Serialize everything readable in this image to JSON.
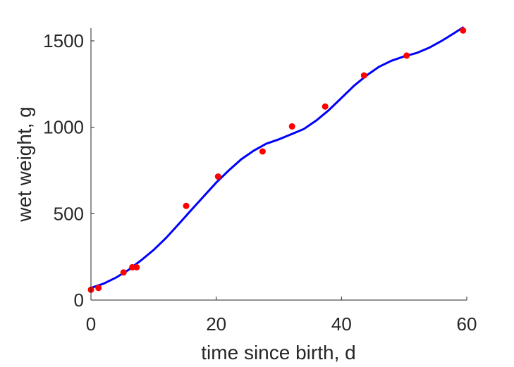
{
  "chart_data": {
    "type": "scatter",
    "xlabel": "time since birth, d",
    "ylabel": "wet weight, g",
    "xlim": [
      0,
      60
    ],
    "ylim": [
      0,
      1600
    ],
    "xticks": [
      0,
      20,
      40,
      60
    ],
    "yticks": [
      0,
      500,
      1000,
      1500
    ],
    "grid": false,
    "series": [
      {
        "kind": "points",
        "color": "#ff0000",
        "points": [
          [
            0,
            60
          ],
          [
            1.2,
            70
          ],
          [
            5.2,
            160
          ],
          [
            6.6,
            190
          ],
          [
            7.3,
            190
          ],
          [
            15.2,
            545
          ],
          [
            20.3,
            715
          ],
          [
            27.4,
            860
          ],
          [
            32.1,
            1005
          ],
          [
            37.4,
            1120
          ],
          [
            43.6,
            1300
          ],
          [
            50.4,
            1415
          ],
          [
            59.4,
            1560
          ]
        ]
      },
      {
        "kind": "line",
        "color": "#0000ff",
        "points": [
          [
            0,
            70
          ],
          [
            2,
            95
          ],
          [
            4,
            130
          ],
          [
            6,
            175
          ],
          [
            8,
            230
          ],
          [
            10,
            290
          ],
          [
            12,
            360
          ],
          [
            14,
            440
          ],
          [
            16,
            520
          ],
          [
            18,
            600
          ],
          [
            20,
            680
          ],
          [
            22,
            750
          ],
          [
            24,
            815
          ],
          [
            26,
            865
          ],
          [
            28,
            905
          ],
          [
            30,
            930
          ],
          [
            32,
            960
          ],
          [
            34,
            990
          ],
          [
            36,
            1040
          ],
          [
            38,
            1100
          ],
          [
            40,
            1170
          ],
          [
            42,
            1240
          ],
          [
            44,
            1300
          ],
          [
            46,
            1350
          ],
          [
            48,
            1385
          ],
          [
            50,
            1410
          ],
          [
            52,
            1430
          ],
          [
            54,
            1460
          ],
          [
            56,
            1500
          ],
          [
            58,
            1545
          ],
          [
            59.5,
            1580
          ]
        ]
      }
    ]
  }
}
